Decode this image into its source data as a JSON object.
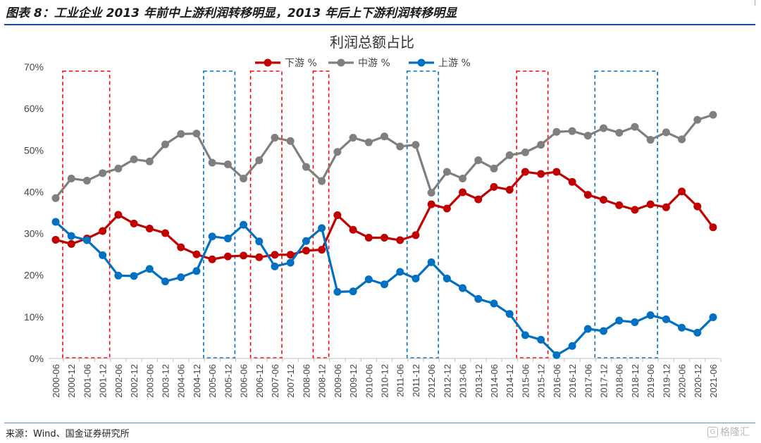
{
  "figure": {
    "title": "图表 8：工业企业 2013 年前中上游利润转移明显，2013 年后上下游利润转移明显",
    "source": "来源：Wind、国金证券研究所",
    "watermark": "格隆汇"
  },
  "chart_data": {
    "type": "line",
    "title": "利润总额占比",
    "xlabel": "",
    "ylabel": "",
    "ylim": [
      0,
      70
    ],
    "ytick_labels": [
      "0%",
      "10%",
      "20%",
      "30%",
      "40%",
      "50%",
      "60%",
      "70%"
    ],
    "grid": false,
    "legend_position": "top-center",
    "x": [
      "2000-06",
      "2000-12",
      "2001-06",
      "2001-12",
      "2002-06",
      "2002-12",
      "2003-06",
      "2003-12",
      "2004-06",
      "2004-12",
      "2005-06",
      "2005-12",
      "2006-06",
      "2006-12",
      "2007-06",
      "2007-12",
      "2008-06",
      "2008-12",
      "2009-06",
      "2009-12",
      "2010-06",
      "2010-12",
      "2011-06",
      "2011-12",
      "2012-06",
      "2012-12",
      "2013-06",
      "2013-12",
      "2014-06",
      "2014-12",
      "2015-06",
      "2015-12",
      "2016-06",
      "2016-12",
      "2017-06",
      "2017-12",
      "2018-06",
      "2018-12",
      "2019-06",
      "2019-12",
      "2020-06",
      "2020-12",
      "2021-06"
    ],
    "series": [
      {
        "name": "下游 %",
        "color": "#c00000",
        "values": [
          28.5,
          27.5,
          28.8,
          30.6,
          34.5,
          32.4,
          31.2,
          30.1,
          26.7,
          25.0,
          23.8,
          24.5,
          24.7,
          24.3,
          24.9,
          24.9,
          25.9,
          26.1,
          34.4,
          30.9,
          29.0,
          29.0,
          28.4,
          29.6,
          37.0,
          36.0,
          39.9,
          38.2,
          41.2,
          40.5,
          44.8,
          44.3,
          44.8,
          42.4,
          39.3,
          38.1,
          36.8,
          35.7,
          37.0,
          36.3,
          40.1,
          36.5,
          31.5
        ]
      },
      {
        "name": "中游 %",
        "color": "#7f7f7f",
        "values": [
          38.5,
          43.2,
          42.7,
          44.5,
          45.6,
          47.8,
          47.3,
          51.4,
          53.9,
          54.0,
          47.0,
          46.6,
          43.2,
          47.6,
          53.0,
          52.2,
          46.0,
          42.6,
          49.6,
          53.0,
          51.9,
          53.3,
          50.9,
          51.3,
          39.8,
          44.8,
          43.2,
          47.6,
          45.6,
          48.8,
          49.5,
          51.3,
          54.4,
          54.6,
          53.5,
          55.3,
          54.2,
          55.6,
          52.5,
          54.3,
          52.6,
          57.3,
          58.5
        ]
      },
      {
        "name": "上游 %",
        "color": "#0070c0",
        "values": [
          32.8,
          29.4,
          28.4,
          24.8,
          19.9,
          19.8,
          21.5,
          18.5,
          19.5,
          21.0,
          29.3,
          28.8,
          32.1,
          28.1,
          22.1,
          23.0,
          28.2,
          31.3,
          16.0,
          16.1,
          19.0,
          17.8,
          20.8,
          19.2,
          23.1,
          19.2,
          16.9,
          14.3,
          13.2,
          10.7,
          5.6,
          4.5,
          0.8,
          3.0,
          7.1,
          6.6,
          9.1,
          8.7,
          10.4,
          9.4,
          7.4,
          6.2,
          9.9
        ]
      }
    ],
    "highlight_boxes": [
      {
        "color": "#ff0000",
        "from": "2000-06",
        "to": "2001-12"
      },
      {
        "color": "#0070c0",
        "from": "2004-12",
        "to": "2005-12"
      },
      {
        "color": "#ff0000",
        "from": "2006-06",
        "to": "2007-06"
      },
      {
        "color": "#ff0000",
        "from": "2008-06",
        "to": "2008-12"
      },
      {
        "color": "#0070c0",
        "from": "2011-06",
        "to": "2012-06"
      },
      {
        "color": "#ff0000",
        "from": "2014-12",
        "to": "2015-12"
      },
      {
        "color": "#0070c0",
        "from": "2017-06",
        "to": "2019-06"
      }
    ]
  }
}
